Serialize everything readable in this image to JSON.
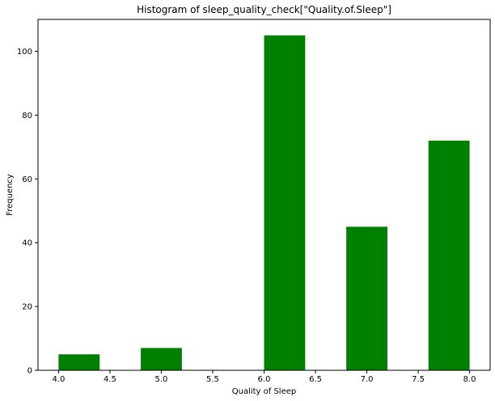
{
  "chart_data": {
    "type": "bar",
    "title": "Histogram of sleep_quality_check[\"Quality.of.Sleep\"]",
    "xlabel": "Quality of Sleep",
    "ylabel": "Frequency",
    "xlim": [
      3.8,
      8.2
    ],
    "ylim": [
      0,
      110
    ],
    "xticks": [
      4.0,
      4.5,
      5.0,
      5.5,
      6.0,
      6.5,
      7.0,
      7.5,
      8.0
    ],
    "xtick_labels": [
      "4.0",
      "4.5",
      "5.0",
      "5.5",
      "6.0",
      "6.5",
      "7.0",
      "7.5",
      "8.0"
    ],
    "yticks": [
      0,
      20,
      40,
      60,
      80,
      100
    ],
    "ytick_labels": [
      "0",
      "20",
      "40",
      "60",
      "80",
      "100"
    ],
    "bins": [
      {
        "start": 4.0,
        "end": 4.4,
        "count": 5
      },
      {
        "start": 4.8,
        "end": 5.2,
        "count": 7
      },
      {
        "start": 6.0,
        "end": 6.4,
        "count": 105
      },
      {
        "start": 6.8,
        "end": 7.2,
        "count": 45
      },
      {
        "start": 7.6,
        "end": 8.0,
        "count": 72
      }
    ],
    "bar_color": "#008000",
    "grid": false,
    "legend": "none"
  }
}
